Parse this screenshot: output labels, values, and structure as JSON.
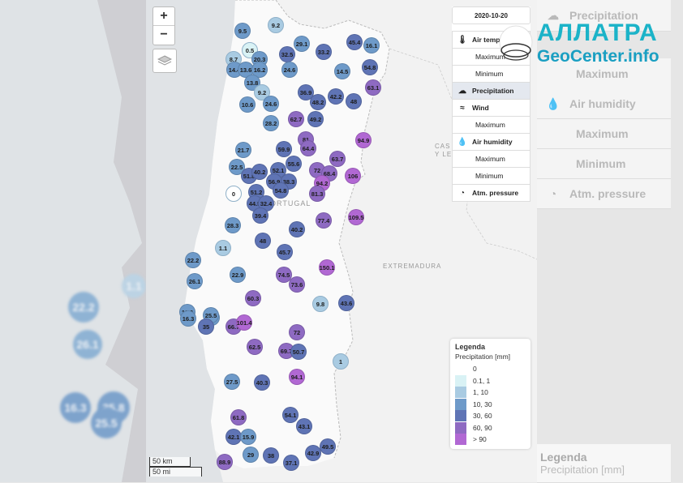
{
  "date": "2020-10-20",
  "zoom": {
    "in": "+",
    "out": "−"
  },
  "menu": [
    {
      "label": "Air temperature",
      "type": "main",
      "icon": "thermometer-icon",
      "glyph": "🌡"
    },
    {
      "label": "Maximum",
      "type": "sub"
    },
    {
      "label": "Minimum",
      "type": "sub"
    },
    {
      "label": "Precipitation",
      "type": "main",
      "icon": "rain-cloud-icon",
      "glyph": "☁",
      "active": true
    },
    {
      "label": "Wind",
      "type": "main",
      "icon": "wind-icon",
      "glyph": "≈"
    },
    {
      "label": "Maximum",
      "type": "sub"
    },
    {
      "label": "Air humidity",
      "type": "main",
      "icon": "humidity-drop-icon",
      "glyph": "💧"
    },
    {
      "label": "Maximum",
      "type": "sub"
    },
    {
      "label": "Minimum",
      "type": "sub"
    },
    {
      "label": "Atm. pressure",
      "type": "main",
      "icon": "pressure-gauge-icon",
      "glyph": "◔"
    }
  ],
  "legend": {
    "title": "Legenda",
    "subtitle": "Precipitation [mm]",
    "items": [
      {
        "label": "0",
        "color": "#ffffff"
      },
      {
        "label": "0.1, 1",
        "color": "#d9f2f5"
      },
      {
        "label": "1, 10",
        "color": "#a9cbe2"
      },
      {
        "label": "10, 30",
        "color": "#6e9ac9"
      },
      {
        "label": "30, 60",
        "color": "#5f74b5"
      },
      {
        "label": "60, 90",
        "color": "#8e6ac2"
      },
      {
        "label": "> 90",
        "color": "#b168d3"
      }
    ]
  },
  "scale": {
    "km": "50 km",
    "mi": "50 mi"
  },
  "map_labels": [
    {
      "text": "PORTUGAL"
    },
    {
      "text": "EXTREMADURA"
    },
    {
      "text": "CAS"
    },
    {
      "text": "Y LE"
    }
  ],
  "logo": {
    "line1": "АЛЛАТРА",
    "line2": "GeoCenter.info"
  },
  "right_panel": [
    "Precipitation",
    "Maximum",
    "Air humidity",
    "Maximum",
    "Minimum",
    "Atm. pressure",
    "Legenda",
    "Precipitation [mm]"
  ],
  "blurred_left_values": [
    "1.1",
    "22.2",
    "26.1",
    "16.3",
    "25.8",
    "25.5"
  ],
  "stations": [
    {
      "v": "9.5",
      "c": "#6e9ac9"
    },
    {
      "v": "9.2",
      "c": "#a9cbe2"
    },
    {
      "v": "29.1",
      "c": "#6e9ac9"
    },
    {
      "v": "45.4",
      "c": "#5f74b5"
    },
    {
      "v": "16.1",
      "c": "#6e9ac9"
    },
    {
      "v": "0.5",
      "c": "#d9f2f5"
    },
    {
      "v": "8.7",
      "c": "#a9cbe2"
    },
    {
      "v": "20.3",
      "c": "#6e9ac9"
    },
    {
      "v": "32.5",
      "c": "#5f74b5"
    },
    {
      "v": "33.2",
      "c": "#5f74b5"
    },
    {
      "v": "14.4",
      "c": "#6e9ac9"
    },
    {
      "v": "13.6",
      "c": "#6e9ac9"
    },
    {
      "v": "16.2",
      "c": "#6e9ac9"
    },
    {
      "v": "24.6",
      "c": "#6e9ac9"
    },
    {
      "v": "14.5",
      "c": "#6e9ac9"
    },
    {
      "v": "54.8",
      "c": "#5f74b5"
    },
    {
      "v": "13.8",
      "c": "#6e9ac9"
    },
    {
      "v": "63.1",
      "c": "#8e6ac2"
    },
    {
      "v": "9.2",
      "c": "#a9cbe2"
    },
    {
      "v": "36.9",
      "c": "#5f74b5"
    },
    {
      "v": "42.2",
      "c": "#5f74b5"
    },
    {
      "v": "10.6",
      "c": "#6e9ac9"
    },
    {
      "v": "24.6",
      "c": "#6e9ac9"
    },
    {
      "v": "48.2",
      "c": "#5f74b5"
    },
    {
      "v": "48",
      "c": "#5f74b5"
    },
    {
      "v": "28.2",
      "c": "#6e9ac9"
    },
    {
      "v": "62.7",
      "c": "#8e6ac2"
    },
    {
      "v": "49.2",
      "c": "#5f74b5"
    },
    {
      "v": "81",
      "c": "#8e6ac2"
    },
    {
      "v": "94.9",
      "c": "#b168d3"
    },
    {
      "v": "21.7",
      "c": "#6e9ac9"
    },
    {
      "v": "59.9",
      "c": "#5f74b5"
    },
    {
      "v": "64.4",
      "c": "#8e6ac2"
    },
    {
      "v": "63.7",
      "c": "#8e6ac2"
    },
    {
      "v": "55.6",
      "c": "#5f74b5"
    },
    {
      "v": "22.5",
      "c": "#6e9ac9"
    },
    {
      "v": "51.8",
      "c": "#5f74b5"
    },
    {
      "v": "40.2",
      "c": "#5f74b5"
    },
    {
      "v": "52.1",
      "c": "#5f74b5"
    },
    {
      "v": "72",
      "c": "#8e6ac2"
    },
    {
      "v": "68.4",
      "c": "#8e6ac2"
    },
    {
      "v": "106",
      "c": "#b168d3"
    },
    {
      "v": "56.9",
      "c": "#5f74b5"
    },
    {
      "v": "38.3",
      "c": "#5f74b5"
    },
    {
      "v": "94.2",
      "c": "#b168d3"
    },
    {
      "v": "0",
      "c": "#ffffff"
    },
    {
      "v": "51.2",
      "c": "#5f74b5"
    },
    {
      "v": "54.8",
      "c": "#5f74b5"
    },
    {
      "v": "81.3",
      "c": "#8e6ac2"
    },
    {
      "v": "44.5",
      "c": "#5f74b5"
    },
    {
      "v": "32.4",
      "c": "#5f74b5"
    },
    {
      "v": "39.4",
      "c": "#5f74b5"
    },
    {
      "v": "77.4",
      "c": "#8e6ac2"
    },
    {
      "v": "109.5",
      "c": "#b168d3"
    },
    {
      "v": "28.3",
      "c": "#6e9ac9"
    },
    {
      "v": "40.2",
      "c": "#5f74b5"
    },
    {
      "v": "48",
      "c": "#5f74b5"
    },
    {
      "v": "1.1",
      "c": "#a9cbe2"
    },
    {
      "v": "45.7",
      "c": "#5f74b5"
    },
    {
      "v": "22.2",
      "c": "#6e9ac9"
    },
    {
      "v": "150.1",
      "c": "#b168d3"
    },
    {
      "v": "74.5",
      "c": "#8e6ac2"
    },
    {
      "v": "26.1",
      "c": "#6e9ac9"
    },
    {
      "v": "22.9",
      "c": "#6e9ac9"
    },
    {
      "v": "73.6",
      "c": "#8e6ac2"
    },
    {
      "v": "60.3",
      "c": "#8e6ac2"
    },
    {
      "v": "9.8",
      "c": "#a9cbe2"
    },
    {
      "v": "43.6",
      "c": "#5f74b5"
    },
    {
      "v": "11.3",
      "c": "#6e9ac9"
    },
    {
      "v": "25.8",
      "c": "#6e9ac9"
    },
    {
      "v": "16.3",
      "c": "#6e9ac9"
    },
    {
      "v": "25.5",
      "c": "#6e9ac9"
    },
    {
      "v": "35",
      "c": "#5f74b5"
    },
    {
      "v": "66.7",
      "c": "#8e6ac2"
    },
    {
      "v": "101.4",
      "c": "#b168d3"
    },
    {
      "v": "72",
      "c": "#8e6ac2"
    },
    {
      "v": "62.5",
      "c": "#8e6ac2"
    },
    {
      "v": "69.7",
      "c": "#8e6ac2"
    },
    {
      "v": "50.7",
      "c": "#5f74b5"
    },
    {
      "v": "1",
      "c": "#a9cbe2"
    },
    {
      "v": "94.1",
      "c": "#b168d3"
    },
    {
      "v": "27.5",
      "c": "#6e9ac9"
    },
    {
      "v": "40.3",
      "c": "#5f74b5"
    },
    {
      "v": "54.1",
      "c": "#5f74b5"
    },
    {
      "v": "61.8",
      "c": "#8e6ac2"
    },
    {
      "v": "43.1",
      "c": "#5f74b5"
    },
    {
      "v": "42.1",
      "c": "#5f74b5"
    },
    {
      "v": "15.9",
      "c": "#6e9ac9"
    },
    {
      "v": "49.5",
      "c": "#5f74b5"
    },
    {
      "v": "42.9",
      "c": "#5f74b5"
    },
    {
      "v": "29",
      "c": "#6e9ac9"
    },
    {
      "v": "38",
      "c": "#5f74b5"
    },
    {
      "v": "88.9",
      "c": "#8e6ac2"
    },
    {
      "v": "37.1",
      "c": "#5f74b5"
    }
  ]
}
